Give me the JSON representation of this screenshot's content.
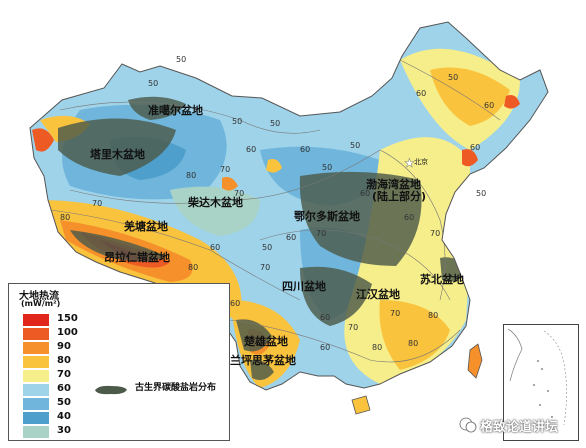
{
  "basin_labels": {
    "junggar": "准噶尔盆地",
    "tarim": "塔里木盆地",
    "qaidam": "柴达木盆地",
    "qiangtang": "羌塘盆地",
    "ngari": "昂拉仁错盆地",
    "ordos": "鄂尔多斯盆地",
    "bohai_bay_line1": "渤海湾盆地",
    "bohai_bay_line2": "(陆上部分)",
    "sichuan": "四川盆地",
    "jianghan": "江汉盆地",
    "subei": "苏北盆地",
    "chuxiong": "楚雄盆地",
    "lanping_simao": "兰坪思茅盆地"
  },
  "capital_label": "北京",
  "contour_labels": [
    "50",
    "50",
    "60",
    "70",
    "50",
    "60",
    "50",
    "50",
    "60",
    "50",
    "60",
    "50",
    "60",
    "70",
    "80",
    "50",
    "60",
    "70",
    "60",
    "70",
    "60",
    "70",
    "80",
    "50",
    "60",
    "80",
    "60",
    "100",
    "70",
    "80",
    "80",
    "60",
    "70",
    "60",
    "50",
    "60",
    "70",
    "80"
  ],
  "legend": {
    "title": "大地热流",
    "unit": "(mW/m²)",
    "classes": [
      {
        "value": "150",
        "color": "#e1261c"
      },
      {
        "value": "100",
        "color": "#ee5a24"
      },
      {
        "value": "90",
        "color": "#f5902a"
      },
      {
        "value": "80",
        "color": "#f9c33e"
      },
      {
        "value": "70",
        "color": "#f6ee8a"
      },
      {
        "value": "60",
        "color": "#9fd3ea"
      },
      {
        "value": "50",
        "color": "#70b6dc"
      },
      {
        "value": "40",
        "color": "#4e9fcb"
      },
      {
        "value": "30",
        "color": "#a9d3c6"
      }
    ],
    "carbonate_label": "古生界碳酸盐岩分布",
    "carbonate_color": "#4c5a4a"
  },
  "watermark": "格致论道讲坛"
}
